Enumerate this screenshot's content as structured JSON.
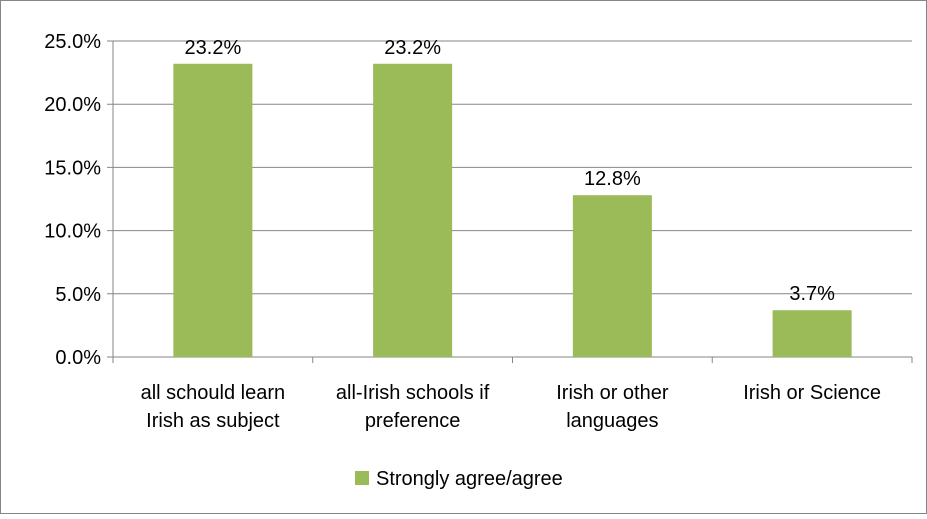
{
  "chart_data": {
    "type": "bar",
    "categories": [
      [
        "all schould learn",
        "Irish as subject"
      ],
      [
        "all-Irish schools if",
        "preference"
      ],
      [
        "Irish or other",
        "languages"
      ],
      [
        "Irish or Science"
      ]
    ],
    "series": [
      {
        "name": "Strongly agree/agree",
        "values": [
          23.2,
          23.2,
          12.8,
          3.7
        ],
        "data_labels": [
          "23.2%",
          "23.2%",
          "12.8%",
          "3.7%"
        ],
        "color": "#9BBB59"
      }
    ],
    "ylim": [
      0,
      25
    ],
    "y_ticks": [
      0,
      5,
      10,
      15,
      20,
      25
    ],
    "y_tick_labels": [
      "0.0%",
      "5.0%",
      "10.0%",
      "15.0%",
      "20.0%",
      "25.0%"
    ],
    "grid": true,
    "legend_position": "bottom",
    "colors": {
      "bar": "#9BBB59",
      "grid": "#868686",
      "frame": "#868686"
    }
  }
}
